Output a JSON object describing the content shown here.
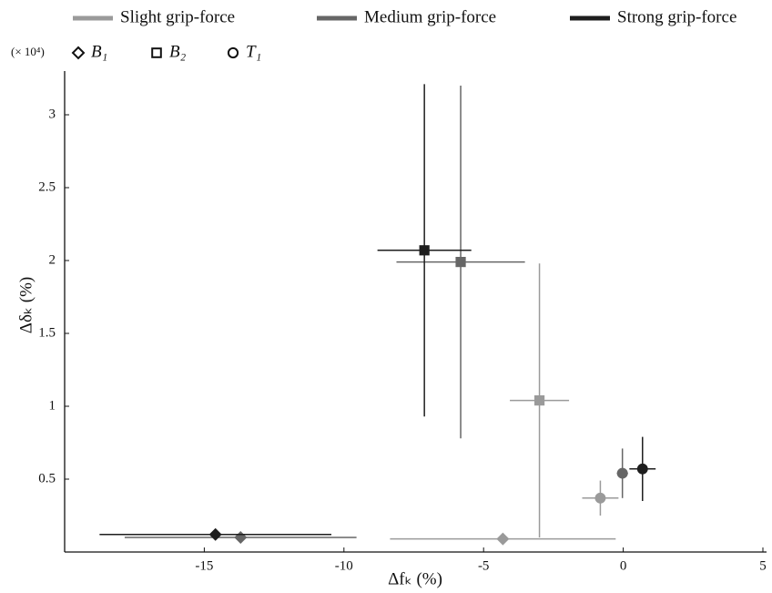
{
  "chart_data": {
    "type": "scatter",
    "multiplier_label": "(× 10⁴)",
    "xlabel": "Δfₖ (%)",
    "ylabel": "Δδₖ (%)",
    "marker_labels": [
      "B₁",
      "B₂",
      "T₁"
    ],
    "marker_shapes": [
      "diamond",
      "square",
      "circle"
    ],
    "series": [
      {
        "name": "Slight grip-force",
        "color": "#9a9a9a",
        "x": [
          -4.31,
          -3.0,
          -0.82
        ],
        "values": [
          0.09,
          1.04,
          0.37
        ],
        "xerr": [
          4.04,
          1.06,
          0.65
        ],
        "yerr": [
          null,
          0.94,
          0.12
        ]
      },
      {
        "name": "Medium grip-force",
        "color": "#666666",
        "x": [
          -13.7,
          -5.82,
          -0.03
        ],
        "values": [
          0.1,
          1.99,
          0.54
        ],
        "xerr": [
          4.15,
          2.3,
          0.2
        ],
        "yerr": [
          null,
          1.21,
          0.17
        ]
      },
      {
        "name": "Strong grip-force",
        "color": "#1e1e1e",
        "x": [
          -14.6,
          -7.12,
          0.69
        ],
        "values": [
          0.12,
          2.07,
          0.57
        ],
        "xerr": [
          4.15,
          1.68,
          0.47
        ],
        "yerr": [
          null,
          1.14,
          0.22
        ]
      }
    ],
    "xlim": [
      -20,
      5
    ],
    "ylim": [
      0,
      3.3
    ],
    "xticks": [
      -15,
      -10,
      -5,
      0,
      5
    ],
    "yticks": [
      0.5,
      1,
      1.5,
      2,
      2.5,
      3
    ]
  }
}
